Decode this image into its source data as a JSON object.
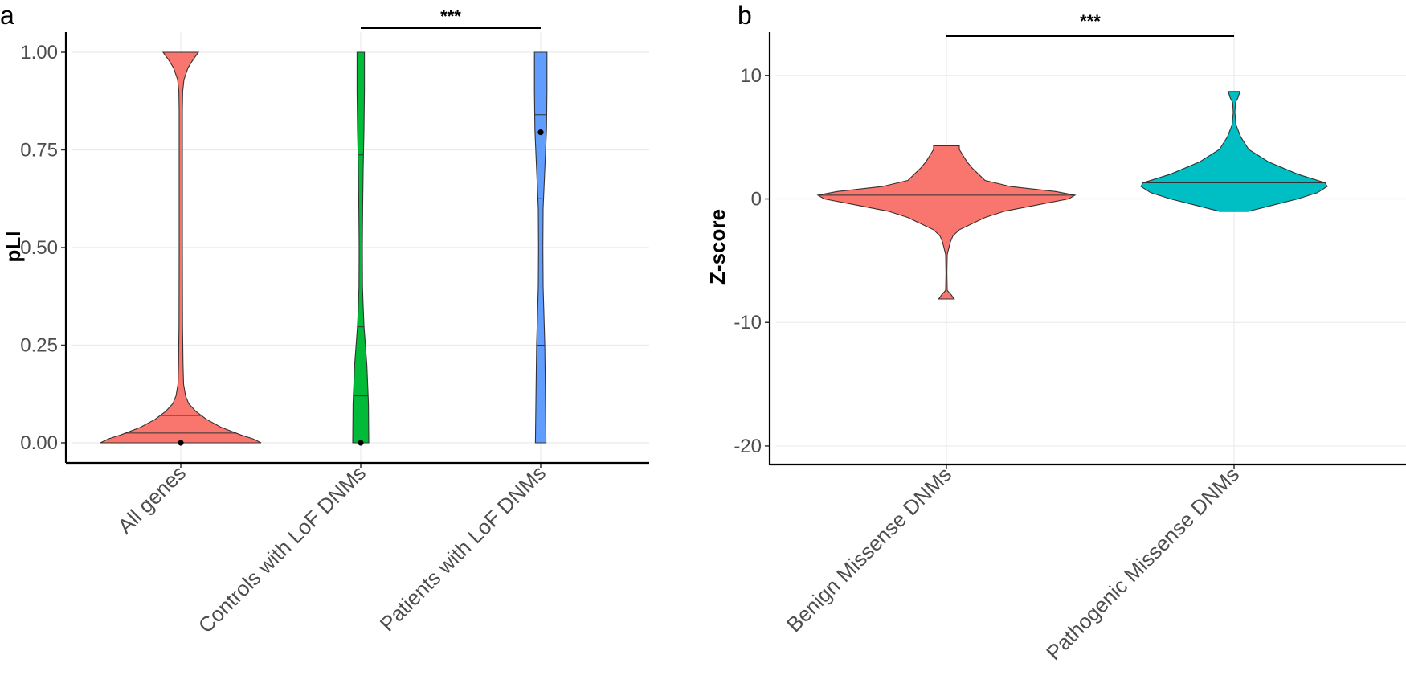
{
  "chart_data": [
    {
      "panel": "a",
      "type": "violin",
      "ylabel": "pLI",
      "xlabel": "",
      "ylim": [
        0,
        1
      ],
      "yticks": [
        0,
        0.25,
        0.5,
        0.75,
        1
      ],
      "ytick_labels": [
        "0.00",
        "0.25",
        "0.50",
        "0.75",
        "1.00"
      ],
      "grid": true,
      "categories": [
        "All genes",
        "Controls with LoF DNMs",
        "Patients with LoF DNMs"
      ],
      "colors": [
        "#F8766D",
        "#00BA38",
        "#619CFF"
      ],
      "series": [
        {
          "name": "All genes",
          "density_profile": [
            [
              0,
              1.0
            ],
            [
              0.01,
              0.9
            ],
            [
              0.02,
              0.75
            ],
            [
              0.04,
              0.5
            ],
            [
              0.06,
              0.32
            ],
            [
              0.08,
              0.19
            ],
            [
              0.1,
              0.1
            ],
            [
              0.12,
              0.06
            ],
            [
              0.15,
              0.035
            ],
            [
              0.2,
              0.028
            ],
            [
              0.3,
              0.022
            ],
            [
              0.5,
              0.02
            ],
            [
              0.7,
              0.02
            ],
            [
              0.85,
              0.02
            ],
            [
              0.9,
              0.024
            ],
            [
              0.93,
              0.04
            ],
            [
              0.96,
              0.09
            ],
            [
              0.98,
              0.15
            ],
            [
              1.0,
              0.22
            ]
          ],
          "quantiles": [
            0.025,
            0.07
          ],
          "median_point": 0.0
        },
        {
          "name": "Controls with LoF DNMs",
          "density_profile": [
            [
              0,
              0.5
            ],
            [
              0.1,
              0.48
            ],
            [
              0.2,
              0.38
            ],
            [
              0.3,
              0.2
            ],
            [
              0.35,
              0.15
            ],
            [
              0.4,
              0.11
            ],
            [
              0.5,
              0.1
            ],
            [
              0.6,
              0.12
            ],
            [
              0.7,
              0.15
            ],
            [
              0.8,
              0.2
            ],
            [
              0.9,
              0.23
            ],
            [
              1.0,
              0.23
            ]
          ],
          "quantiles": [
            0.12,
            0.297,
            0.737
          ],
          "median_point": 0.0
        },
        {
          "name": "Patients with LoF DNMs",
          "density_profile": [
            [
              0,
              0.22
            ],
            [
              0.1,
              0.2
            ],
            [
              0.25,
              0.17
            ],
            [
              0.4,
              0.1
            ],
            [
              0.5,
              0.09
            ],
            [
              0.6,
              0.1
            ],
            [
              0.7,
              0.17
            ],
            [
              0.8,
              0.24
            ],
            [
              0.9,
              0.26
            ],
            [
              1.0,
              0.26
            ]
          ],
          "quantiles": [
            0.25,
            0.625,
            0.84
          ],
          "median_point": 0.795
        }
      ],
      "significance": {
        "from": "Controls with LoF DNMs",
        "to": "Patients with LoF DNMs",
        "label": "***"
      }
    },
    {
      "panel": "b",
      "type": "violin",
      "ylabel": "Z-score",
      "xlabel": "",
      "ylim": [
        -21.5,
        13.5
      ],
      "yticks": [
        -20,
        -10,
        0,
        10
      ],
      "ytick_labels": [
        "-20",
        "-10",
        "0",
        "10"
      ],
      "grid": true,
      "categories": [
        "Benign Missense DNMs",
        "Pathogenic Missense DNMs"
      ],
      "colors": [
        "#F8766D",
        "#00BFC4"
      ],
      "series": [
        {
          "name": "Benign Missense DNMs",
          "density_profile": [
            [
              -8.1,
              0.06
            ],
            [
              -7.8,
              0.04
            ],
            [
              -7.4,
              0.006
            ],
            [
              -6,
              0.004
            ],
            [
              -4.5,
              0.006
            ],
            [
              -3.5,
              0.03
            ],
            [
              -3,
              0.05
            ],
            [
              -2.5,
              0.1
            ],
            [
              -2,
              0.2
            ],
            [
              -1.5,
              0.3
            ],
            [
              -1,
              0.45
            ],
            [
              -0.5,
              0.7
            ],
            [
              0,
              0.95
            ],
            [
              0.3,
              1.0
            ],
            [
              0.6,
              0.85
            ],
            [
              1,
              0.5
            ],
            [
              1.5,
              0.3
            ],
            [
              2,
              0.25
            ],
            [
              2.5,
              0.2
            ],
            [
              3,
              0.16
            ],
            [
              3.5,
              0.13
            ],
            [
              4,
              0.1
            ],
            [
              4.3,
              0.1
            ]
          ],
          "median_line": 0.3
        },
        {
          "name": "Pathogenic Missense DNMs",
          "density_profile": [
            [
              -1.0,
              0.15
            ],
            [
              -0.5,
              0.4
            ],
            [
              0,
              0.65
            ],
            [
              0.5,
              0.85
            ],
            [
              1,
              0.95
            ],
            [
              1.3,
              0.93
            ],
            [
              2,
              0.65
            ],
            [
              3,
              0.35
            ],
            [
              4,
              0.15
            ],
            [
              5,
              0.07
            ],
            [
              6,
              0.02
            ],
            [
              7,
              0.008
            ],
            [
              7.8,
              0.015
            ],
            [
              8.2,
              0.04
            ],
            [
              8.7,
              0.06
            ]
          ],
          "median_line": 1.3
        }
      ],
      "significance": {
        "from": "Benign Missense DNMs",
        "to": "Pathogenic Missense DNMs",
        "label": "***"
      }
    }
  ]
}
